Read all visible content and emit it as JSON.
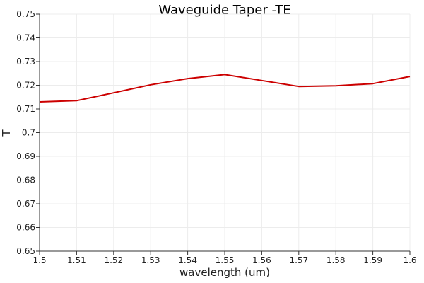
{
  "chart_data": {
    "type": "line",
    "title": "Waveguide Taper -TE",
    "xlabel": "wavelength (um)",
    "ylabel": "T",
    "xlim": [
      1.5,
      1.6
    ],
    "ylim": [
      0.65,
      0.75
    ],
    "grid": true,
    "x_ticks": [
      "1.5",
      "1.51",
      "1.52",
      "1.53",
      "1.54",
      "1.55",
      "1.56",
      "1.57",
      "1.58",
      "1.59",
      "1.6"
    ],
    "y_ticks": [
      "0.65",
      "0.66",
      "0.67",
      "0.68",
      "0.69",
      "0.7",
      "0.71",
      "0.72",
      "0.73",
      "0.74",
      "0.75"
    ],
    "series": [
      {
        "color": "#cc0000",
        "x": [
          1.5,
          1.51,
          1.52,
          1.53,
          1.54,
          1.55,
          1.56,
          1.57,
          1.58,
          1.59,
          1.6
        ],
        "y": [
          0.713,
          0.7135,
          0.7168,
          0.7202,
          0.7228,
          0.7245,
          0.722,
          0.7195,
          0.7198,
          0.7207,
          0.7237
        ]
      }
    ]
  }
}
